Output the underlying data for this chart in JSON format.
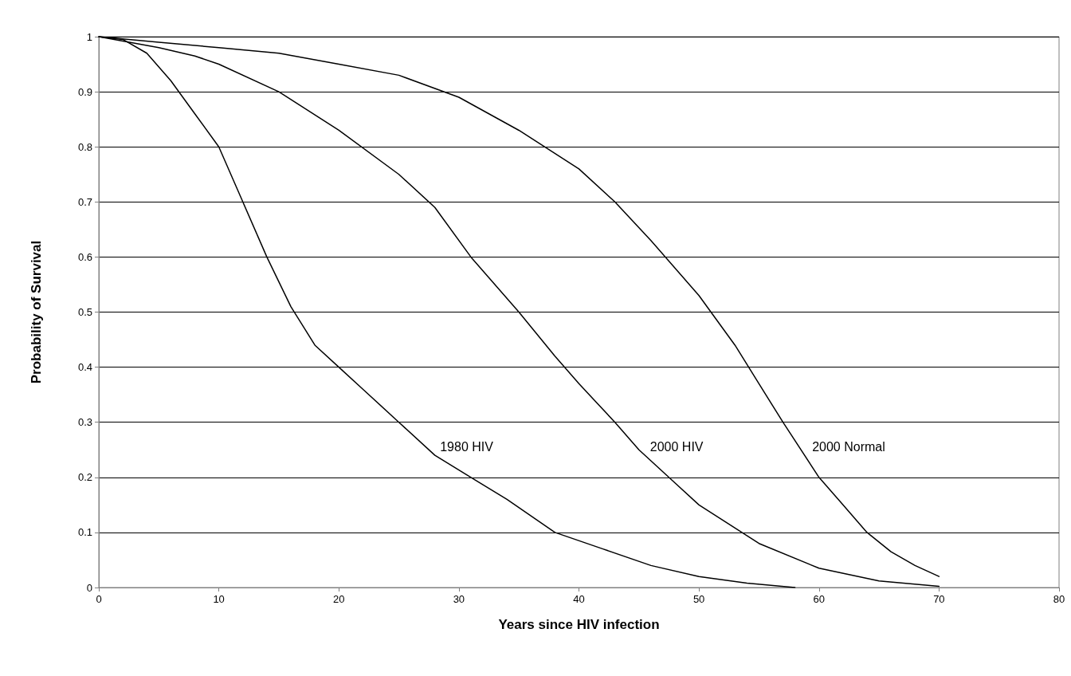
{
  "chart_data": {
    "type": "line",
    "xlabel": "Years since HIV infection",
    "ylabel": "Probability of Survival",
    "xlim": [
      0,
      80
    ],
    "xticks": [
      0,
      10,
      20,
      30,
      40,
      50,
      60,
      70,
      80
    ],
    "ylim": [
      0,
      1
    ],
    "yticks": [
      0,
      0.1,
      0.2,
      0.3,
      0.4,
      0.5,
      0.6,
      0.7,
      0.8,
      0.9,
      1
    ],
    "grid": "y",
    "legend": false,
    "marker": "none",
    "line_style": "solid",
    "series": [
      {
        "name": "1980 HIV",
        "color": "#000000",
        "x": [
          0,
          2,
          4,
          6,
          8,
          10,
          12,
          14,
          16,
          18,
          20,
          22,
          25,
          28,
          31,
          34,
          38,
          42,
          46,
          50,
          54,
          58
        ],
        "values": [
          1,
          0.995,
          0.97,
          0.92,
          0.86,
          0.8,
          0.7,
          0.6,
          0.51,
          0.44,
          0.4,
          0.36,
          0.3,
          0.24,
          0.2,
          0.16,
          0.1,
          0.07,
          0.04,
          0.02,
          0.008,
          0
        ]
      },
      {
        "name": "2000 HIV",
        "color": "#000000",
        "x": [
          0,
          5,
          8,
          10,
          15,
          20,
          25,
          28,
          31,
          35,
          38,
          40,
          43,
          45,
          48,
          50,
          55,
          60,
          65,
          70
        ],
        "values": [
          1,
          0.98,
          0.965,
          0.95,
          0.9,
          0.83,
          0.75,
          0.69,
          0.6,
          0.5,
          0.42,
          0.37,
          0.3,
          0.25,
          0.19,
          0.15,
          0.08,
          0.035,
          0.012,
          0.002
        ]
      },
      {
        "name": "2000 Normal",
        "color": "#000000",
        "x": [
          0,
          5,
          10,
          15,
          20,
          25,
          30,
          35,
          40,
          43,
          46,
          50,
          53,
          55,
          57,
          60,
          62,
          64,
          66,
          68,
          70
        ],
        "values": [
          1,
          0.99,
          0.98,
          0.97,
          0.95,
          0.93,
          0.89,
          0.83,
          0.76,
          0.7,
          0.63,
          0.53,
          0.44,
          0.37,
          0.3,
          0.2,
          0.15,
          0.1,
          0.065,
          0.04,
          0.02
        ]
      }
    ]
  }
}
